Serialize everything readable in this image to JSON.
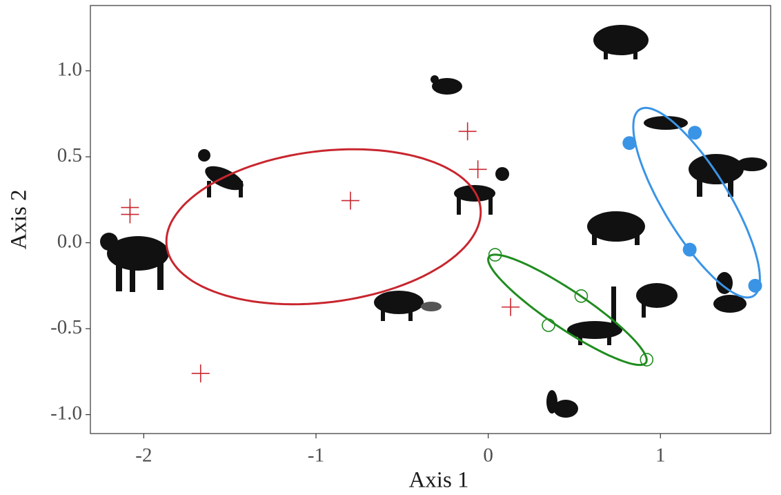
{
  "chart_data": {
    "type": "scatter",
    "xlabel": "Axis 1",
    "ylabel": "Axis 2",
    "xlim": [
      -2.31,
      1.64
    ],
    "ylim": [
      -1.11,
      1.38
    ],
    "xticks": [
      -2,
      -1,
      0,
      1
    ],
    "yticks": [
      {
        "value": -1,
        "label": "-1.0"
      },
      -0.5,
      {
        "value": 0,
        "label": "0.0"
      },
      0.5,
      {
        "value": 1,
        "label": "1.0"
      }
    ],
    "grid": false,
    "series": [
      {
        "color": "#c8262e",
        "marker": "plus",
        "x": [
          -2.08,
          -2.08,
          -1.67,
          -0.8,
          -0.12,
          -0.06,
          0.13
        ],
        "values": [
          0.205,
          0.165,
          -0.76,
          0.245,
          0.648,
          0.427,
          -0.374
        ],
        "ellipse": {
          "center": [
            -0.956,
            0.093
          ],
          "radii": [
            0.918,
            0.44
          ],
          "angle": 7
        }
      },
      {
        "color": "#1f8c1f",
        "marker": "open-circle",
        "x": [
          0.04,
          0.54,
          0.35,
          0.92
        ],
        "values": [
          -0.07,
          -0.31,
          -0.48,
          -0.68
        ],
        "ellipse": {
          "center": [
            0.46,
            -0.39
          ],
          "radii": [
            0.55,
            0.11
          ],
          "angle": -34
        }
      },
      {
        "color": "#3a94e6",
        "marker": "filled-circle",
        "x": [
          0.82,
          1.2,
          1.17,
          1.55
        ],
        "values": [
          0.58,
          0.64,
          -0.04,
          -0.25
        ],
        "ellipse": {
          "center": [
            1.21,
            0.233
          ],
          "radii": [
            0.635,
            0.19
          ],
          "angle": -58.7
        }
      }
    ]
  }
}
